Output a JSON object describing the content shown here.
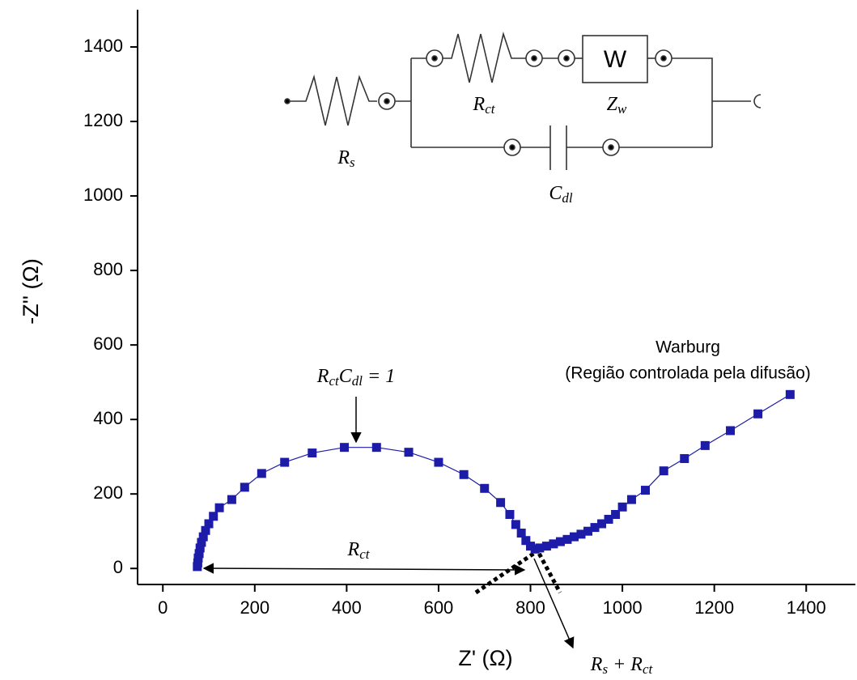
{
  "chart_data": {
    "type": "line",
    "x_label": "Z' (Ω)",
    "y_label": "-Z'' (Ω)",
    "xlim": [
      -55,
      1507
    ],
    "ylim": [
      -43,
      1500
    ],
    "xticks": [
      0,
      200,
      400,
      600,
      800,
      1000,
      1200,
      1400
    ],
    "yticks": [
      0,
      200,
      400,
      600,
      800,
      1000,
      1200,
      1400
    ],
    "series": [
      {
        "name": "Z",
        "color": "#1c1ca8",
        "x": [
          75,
          76,
          77,
          79,
          81,
          84,
          88,
          93,
          100,
          110,
          123,
          150,
          178,
          215,
          265,
          325,
          395,
          465,
          535,
          600,
          655,
          700,
          735,
          755,
          768,
          780,
          790,
          800,
          810,
          820,
          835,
          850,
          865,
          880,
          895,
          910,
          925,
          940,
          955,
          970,
          985,
          1000,
          1020,
          1050,
          1090,
          1135,
          1180,
          1235,
          1295,
          1365
        ],
        "values": [
          5,
          15,
          28,
          40,
          55,
          70,
          85,
          102,
          120,
          140,
          163,
          185,
          218,
          255,
          285,
          310,
          325,
          325,
          312,
          285,
          252,
          215,
          177,
          145,
          118,
          95,
          75,
          60,
          52,
          55,
          60,
          66,
          72,
          78,
          85,
          92,
          100,
          110,
          120,
          132,
          145,
          165,
          185,
          210,
          262,
          295,
          330,
          370,
          415,
          467
        ]
      }
    ],
    "annotations": [
      "Warburg",
      "(Região controlada pela difusão)",
      "R_ctC_dl = 1",
      "R_ct",
      "R_s + R_ct"
    ],
    "circuit": {
      "labels": [
        "R_s",
        "R_ct",
        "Z_w",
        "C_dl",
        "W"
      ]
    }
  }
}
